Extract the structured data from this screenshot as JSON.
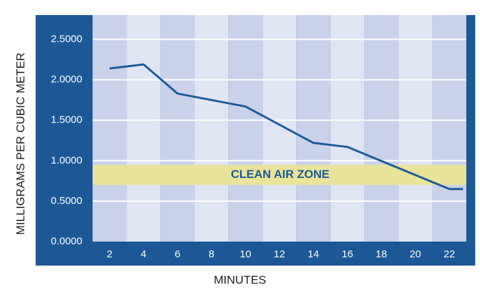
{
  "chart_data": {
    "type": "line",
    "x_label": "MINUTES",
    "y_label": "MILLIGRAMS PER CUBIC METER",
    "x": [
      2,
      4,
      6,
      10,
      14,
      16,
      22,
      22.8
    ],
    "series": [
      {
        "color": "#1b5a9a",
        "values": [
          2.14,
          2.19,
          1.83,
          1.67,
          1.22,
          1.17,
          0.65,
          0.65
        ]
      }
    ],
    "xlim": [
      1,
      23
    ],
    "ylim": [
      0,
      2.8
    ],
    "xticks": [
      2,
      4,
      6,
      8,
      10,
      12,
      14,
      16,
      18,
      20,
      22
    ],
    "yticks": [
      {
        "value": 0,
        "label": "0.0000"
      },
      {
        "value": 0.5,
        "label": "0.5000"
      },
      {
        "value": 1,
        "label": "1.0000"
      },
      {
        "value": 1.5,
        "label": "1.5000"
      },
      {
        "value": 2,
        "label": "2.0000"
      },
      {
        "value": 2.5,
        "label": "2.5000"
      }
    ],
    "grid": true,
    "zone": {
      "label": "CLEAN AIR ZONE",
      "range": [
        0.7,
        0.95
      ],
      "color": "#e9e49a"
    }
  }
}
